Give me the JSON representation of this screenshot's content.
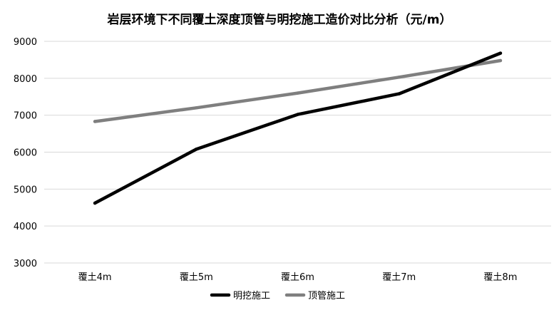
{
  "chart_data": {
    "type": "line",
    "title": "岩层环境下不同覆土深度顶管与明挖施工造价对比分析（元/m）",
    "xlabel": "",
    "ylabel": "",
    "categories": [
      "覆土4m",
      "覆土5m",
      "覆土6m",
      "覆土7m",
      "覆土8m"
    ],
    "ylim": [
      3000,
      9000
    ],
    "yticks": [
      3000,
      4000,
      5000,
      6000,
      7000,
      8000,
      9000
    ],
    "grid": true,
    "legend": "bottom",
    "series": [
      {
        "name": "明挖施工",
        "color": "#000000",
        "values": [
          4620,
          6080,
          7020,
          7580,
          8680
        ]
      },
      {
        "name": "顶管施工",
        "color": "#7f7f7f",
        "values": [
          6830,
          7200,
          7600,
          8030,
          8480
        ]
      }
    ]
  }
}
